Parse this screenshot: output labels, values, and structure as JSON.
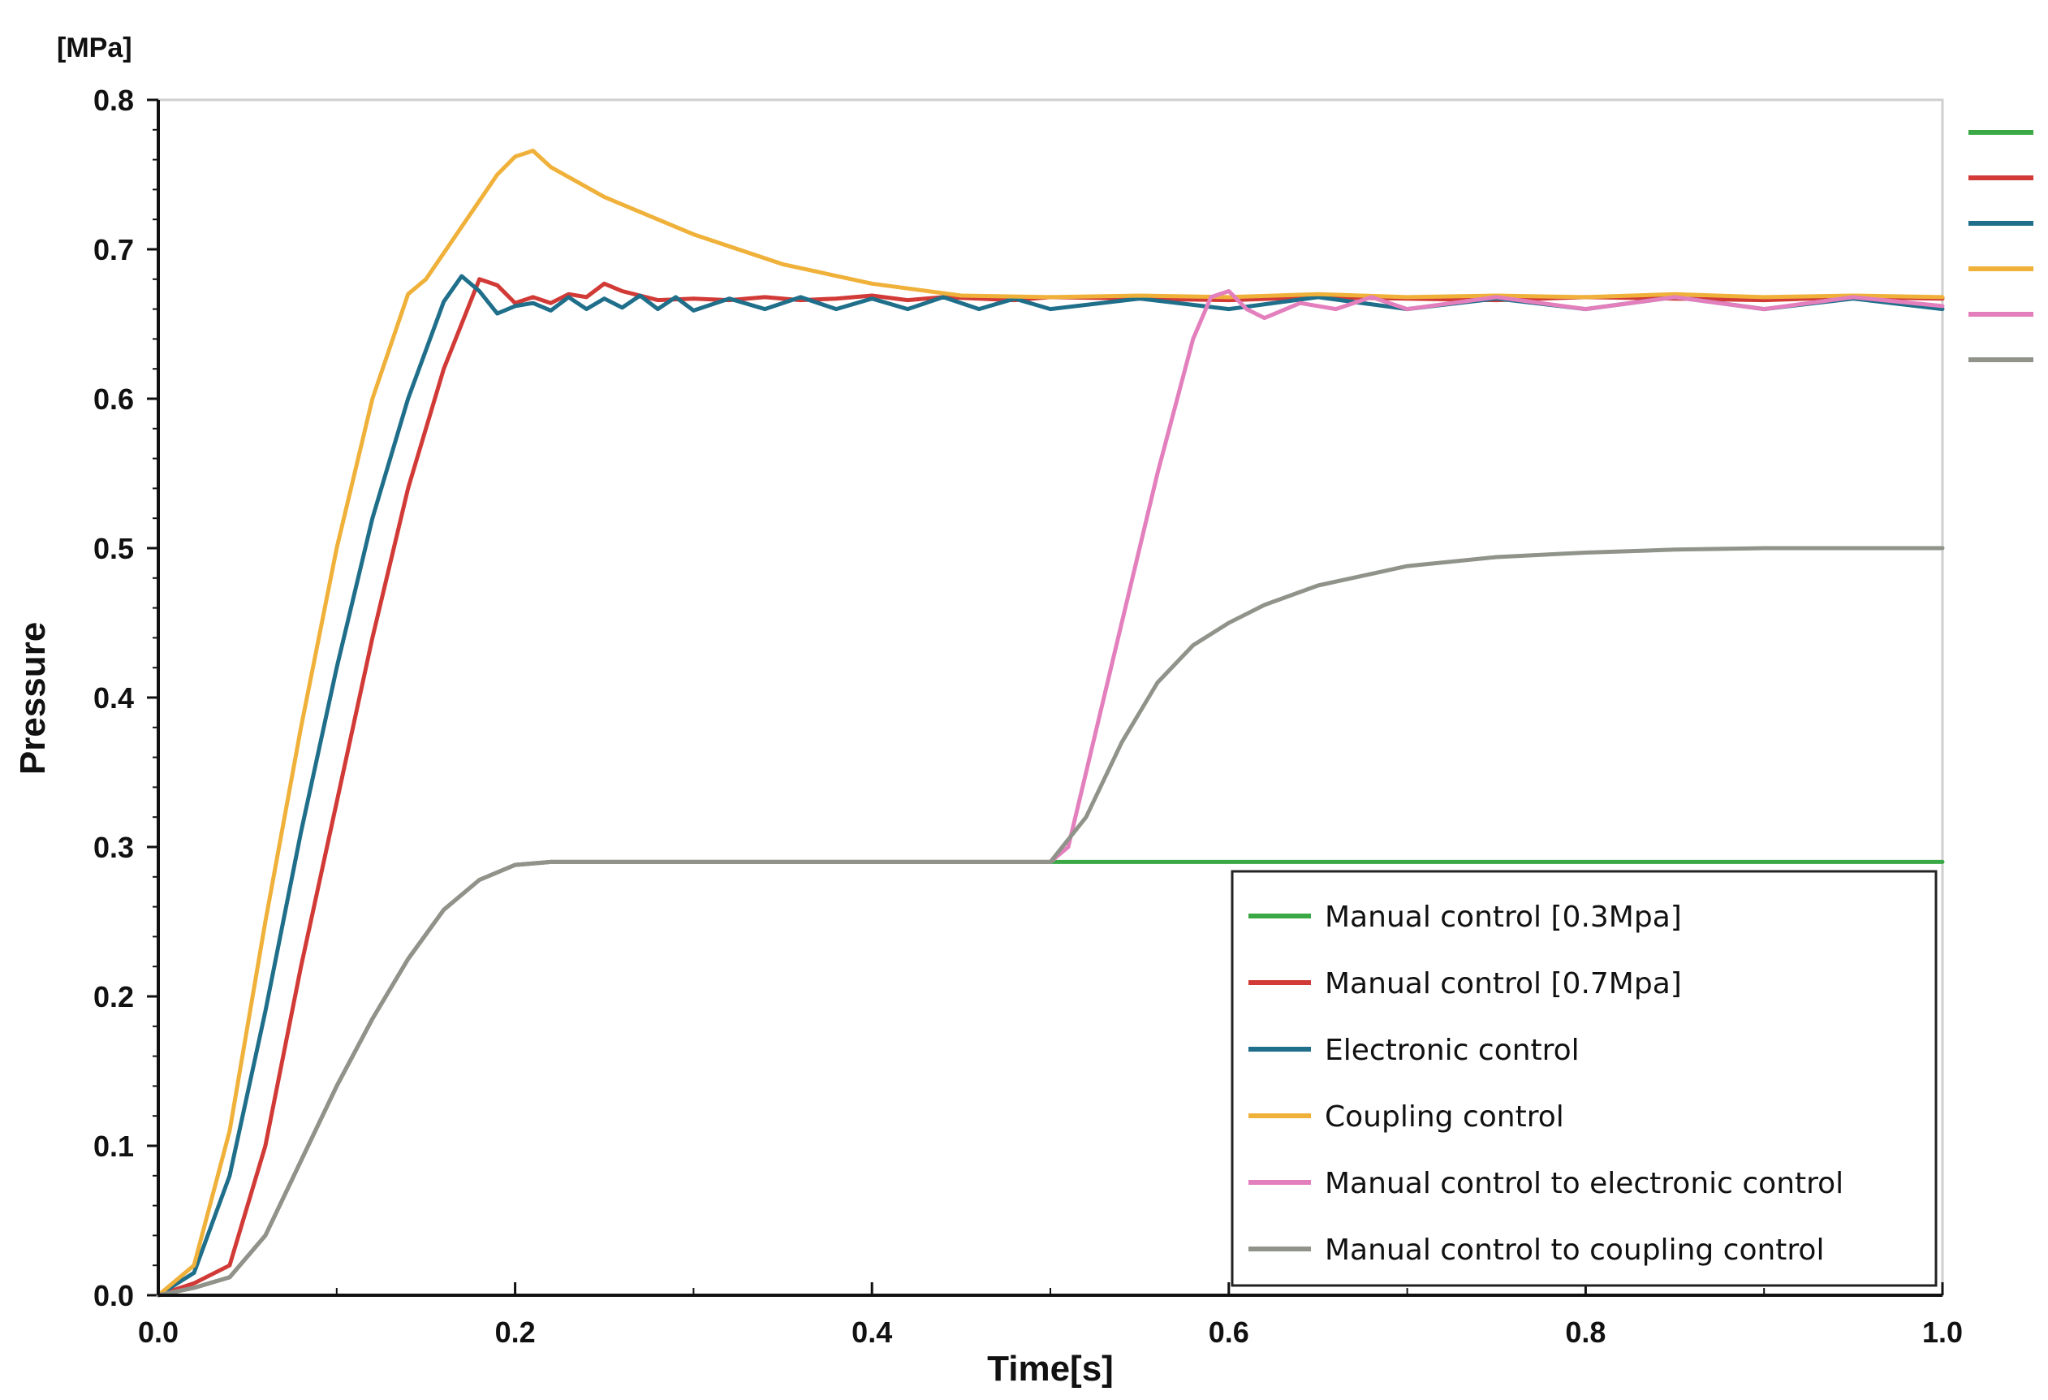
{
  "chart_data": {
    "type": "line",
    "unit_label": "[MPa]",
    "xlabel": "Time[s]",
    "ylabel": "Pressure",
    "xlim": [
      0.0,
      1.0
    ],
    "ylim": [
      0.0,
      0.8
    ],
    "x_ticks": [
      0.0,
      0.2,
      0.4,
      0.6,
      0.8,
      1.0
    ],
    "x_tick_labels": [
      "0.0",
      "0.2",
      "0.4",
      "0.6",
      "0.8",
      "1.0"
    ],
    "y_ticks": [
      0.0,
      0.1,
      0.2,
      0.3,
      0.4,
      0.5,
      0.6,
      0.7,
      0.8
    ],
    "y_tick_labels": [
      "0.0",
      "0.1",
      "0.2",
      "0.3",
      "0.4",
      "0.5",
      "0.6",
      "0.7",
      "0.8"
    ],
    "legend_position": "bottom-right",
    "series": [
      {
        "name": "Manual control [0.3Mpa]",
        "color": "#3aa845",
        "x": [
          0.0,
          0.02,
          0.04,
          0.06,
          0.08,
          0.1,
          0.12,
          0.14,
          0.16,
          0.18,
          0.2,
          0.22,
          0.3,
          0.4,
          0.5,
          0.6,
          0.7,
          0.8,
          0.9,
          1.0
        ],
        "y": [
          0.0,
          0.005,
          0.012,
          0.04,
          0.09,
          0.14,
          0.185,
          0.225,
          0.258,
          0.278,
          0.288,
          0.29,
          0.29,
          0.29,
          0.29,
          0.29,
          0.29,
          0.29,
          0.29,
          0.29
        ]
      },
      {
        "name": "Manual control [0.7Mpa]",
        "color": "#d13a36",
        "x": [
          0.0,
          0.02,
          0.04,
          0.06,
          0.08,
          0.1,
          0.12,
          0.14,
          0.16,
          0.18,
          0.19,
          0.2,
          0.21,
          0.22,
          0.23,
          0.24,
          0.25,
          0.26,
          0.28,
          0.3,
          0.32,
          0.34,
          0.36,
          0.38,
          0.4,
          0.42,
          0.44,
          0.46,
          0.48,
          0.5,
          0.55,
          0.6,
          0.65,
          0.7,
          0.75,
          0.8,
          0.85,
          0.9,
          0.95,
          1.0
        ],
        "y": [
          0.0,
          0.008,
          0.02,
          0.1,
          0.22,
          0.33,
          0.44,
          0.54,
          0.62,
          0.68,
          0.676,
          0.664,
          0.668,
          0.664,
          0.67,
          0.668,
          0.677,
          0.672,
          0.666,
          0.667,
          0.666,
          0.668,
          0.666,
          0.667,
          0.669,
          0.666,
          0.668,
          0.667,
          0.666,
          0.668,
          0.667,
          0.666,
          0.668,
          0.667,
          0.666,
          0.668,
          0.667,
          0.666,
          0.668,
          0.667
        ]
      },
      {
        "name": "Electronic control",
        "color": "#1f6f8b",
        "x": [
          0.0,
          0.02,
          0.04,
          0.06,
          0.08,
          0.1,
          0.12,
          0.14,
          0.16,
          0.17,
          0.18,
          0.19,
          0.2,
          0.21,
          0.22,
          0.23,
          0.24,
          0.25,
          0.26,
          0.27,
          0.28,
          0.29,
          0.3,
          0.32,
          0.34,
          0.36,
          0.38,
          0.4,
          0.42,
          0.44,
          0.46,
          0.48,
          0.5,
          0.55,
          0.6,
          0.65,
          0.7,
          0.75,
          0.8,
          0.85,
          0.9,
          0.95,
          1.0
        ],
        "y": [
          0.0,
          0.015,
          0.08,
          0.19,
          0.31,
          0.42,
          0.52,
          0.6,
          0.665,
          0.682,
          0.672,
          0.657,
          0.662,
          0.664,
          0.659,
          0.668,
          0.66,
          0.667,
          0.661,
          0.669,
          0.66,
          0.668,
          0.659,
          0.667,
          0.66,
          0.668,
          0.66,
          0.667,
          0.66,
          0.668,
          0.66,
          0.667,
          0.66,
          0.667,
          0.66,
          0.668,
          0.66,
          0.667,
          0.66,
          0.668,
          0.66,
          0.667,
          0.66
        ]
      },
      {
        "name": "Coupling control",
        "color": "#f0b13a",
        "x": [
          0.0,
          0.02,
          0.04,
          0.06,
          0.08,
          0.1,
          0.12,
          0.14,
          0.15,
          0.17,
          0.19,
          0.2,
          0.21,
          0.22,
          0.25,
          0.3,
          0.35,
          0.4,
          0.45,
          0.5,
          0.55,
          0.6,
          0.65,
          0.7,
          0.75,
          0.8,
          0.85,
          0.9,
          0.95,
          1.0
        ],
        "y": [
          0.0,
          0.02,
          0.11,
          0.25,
          0.38,
          0.5,
          0.6,
          0.67,
          0.68,
          0.715,
          0.75,
          0.762,
          0.766,
          0.755,
          0.735,
          0.71,
          0.69,
          0.677,
          0.669,
          0.668,
          0.669,
          0.668,
          0.67,
          0.668,
          0.669,
          0.668,
          0.67,
          0.668,
          0.669,
          0.668
        ]
      },
      {
        "name": "Manual control to electronic control",
        "color": "#e37fbc",
        "x": [
          0.0,
          0.02,
          0.04,
          0.06,
          0.08,
          0.1,
          0.12,
          0.14,
          0.16,
          0.18,
          0.2,
          0.22,
          0.3,
          0.4,
          0.5,
          0.51,
          0.52,
          0.54,
          0.56,
          0.58,
          0.59,
          0.6,
          0.61,
          0.62,
          0.64,
          0.66,
          0.68,
          0.7,
          0.75,
          0.8,
          0.85,
          0.9,
          0.95,
          1.0
        ],
        "y": [
          0.0,
          0.005,
          0.012,
          0.04,
          0.09,
          0.14,
          0.185,
          0.225,
          0.258,
          0.278,
          0.288,
          0.29,
          0.29,
          0.29,
          0.29,
          0.3,
          0.35,
          0.45,
          0.55,
          0.64,
          0.668,
          0.672,
          0.66,
          0.654,
          0.664,
          0.66,
          0.668,
          0.66,
          0.668,
          0.66,
          0.668,
          0.66,
          0.668,
          0.662
        ]
      },
      {
        "name": "Manual control to coupling control",
        "color": "#8f9389",
        "x": [
          0.0,
          0.02,
          0.04,
          0.06,
          0.08,
          0.1,
          0.12,
          0.14,
          0.16,
          0.18,
          0.2,
          0.22,
          0.3,
          0.4,
          0.5,
          0.52,
          0.54,
          0.56,
          0.58,
          0.6,
          0.62,
          0.65,
          0.7,
          0.75,
          0.8,
          0.85,
          0.9,
          0.95,
          1.0
        ],
        "y": [
          0.0,
          0.005,
          0.012,
          0.04,
          0.09,
          0.14,
          0.185,
          0.225,
          0.258,
          0.278,
          0.288,
          0.29,
          0.29,
          0.29,
          0.29,
          0.32,
          0.37,
          0.41,
          0.435,
          0.45,
          0.462,
          0.475,
          0.488,
          0.494,
          0.497,
          0.499,
          0.5,
          0.5,
          0.5
        ]
      }
    ]
  }
}
